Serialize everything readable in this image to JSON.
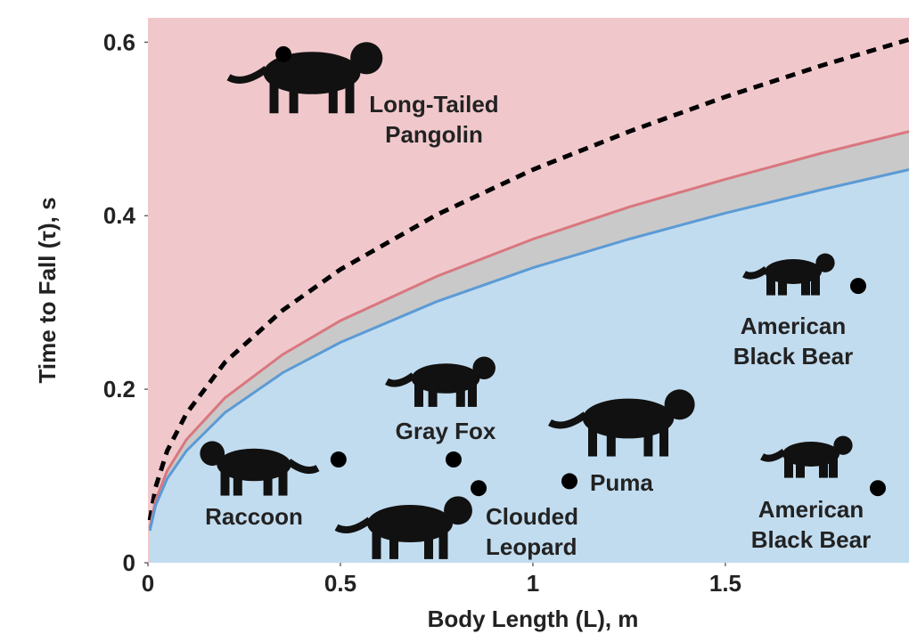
{
  "chart_data": {
    "type": "scatter",
    "xlabel": "Body Length (L), m",
    "ylabel": "Time to Fall (τ), s",
    "xlim": [
      0,
      1.977
    ],
    "ylim": [
      0,
      0.628
    ],
    "xticks": [
      0,
      0.5,
      1,
      1.5
    ],
    "yticks": [
      0,
      0.2,
      0.4,
      0.6
    ],
    "point_color": "#000000",
    "curves": {
      "x": [
        0.005,
        0.02,
        0.05,
        0.1,
        0.2,
        0.35,
        0.5,
        0.75,
        1,
        1.25,
        1.5,
        1.75,
        1.977
      ],
      "series": [
        {
          "color": "#000000",
          "style": "dashed",
          "values": [
            0.049,
            0.087,
            0.129,
            0.172,
            0.231,
            0.291,
            0.338,
            0.401,
            0.453,
            0.497,
            0.537,
            0.573,
            0.603
          ]
        },
        {
          "color": "#d9777f",
          "style": "solid",
          "fill": "#f0c8cc",
          "values": [
            0.04,
            0.072,
            0.106,
            0.142,
            0.19,
            0.24,
            0.279,
            0.33,
            0.373,
            0.41,
            0.442,
            0.472,
            0.497
          ]
        },
        {
          "color": "#5b9bd5",
          "style": "solid",
          "fill": "#c2dcef",
          "values": [
            0.037,
            0.066,
            0.097,
            0.129,
            0.173,
            0.219,
            0.254,
            0.301,
            0.34,
            0.373,
            0.403,
            0.43,
            0.453
          ]
        }
      ],
      "band_color": "#c9c9c9"
    },
    "points": [
      {
        "label": [
          "Long-Tailed",
          "Pangolin"
        ],
        "x": 0.352,
        "y": 0.586
      },
      {
        "label": [
          "American",
          "Black Bear"
        ],
        "x": 1.845,
        "y": 0.319
      },
      {
        "label": [
          "Gray Fox"
        ],
        "x": 0.794,
        "y": 0.119
      },
      {
        "label": [
          "Raccoon"
        ],
        "x": 0.495,
        "y": 0.119
      },
      {
        "label": [
          "Clouded",
          "Leopard"
        ],
        "x": 0.859,
        "y": 0.086
      },
      {
        "label": [
          "Puma"
        ],
        "x": 1.095,
        "y": 0.094
      },
      {
        "label": [
          "American",
          "Black Bear"
        ],
        "x": 1.896,
        "y": 0.086
      }
    ]
  }
}
